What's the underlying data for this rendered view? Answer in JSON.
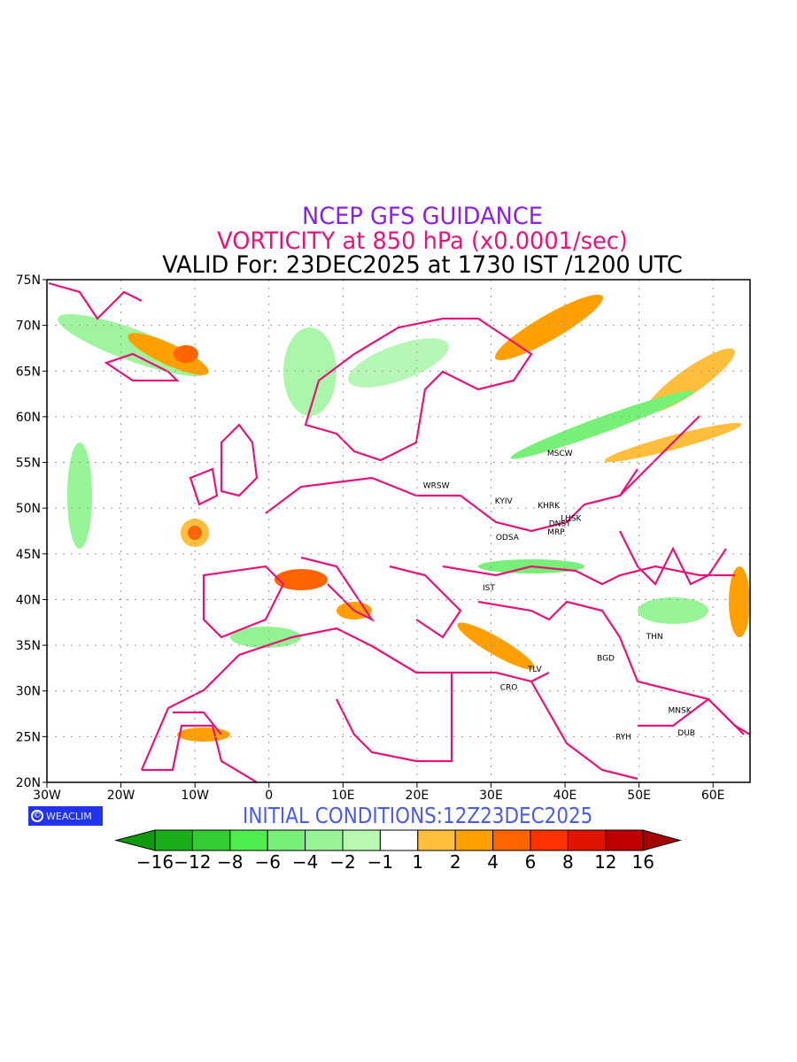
{
  "title": {
    "line1": "NCEP GFS GUIDANCE",
    "line2": "VORTICITY at 850 hPa (x0.0001/sec)",
    "line3": "VALID For: 23DEC2025 at 1730 IST /1200 UTC"
  },
  "colors": {
    "title1": "#8a1fe6",
    "title2": "#e8127a",
    "boundary": "#e8127a",
    "initial": "#4a5cf0"
  },
  "map": {
    "lon_range": [
      -30,
      65
    ],
    "lat_range": [
      20,
      75
    ],
    "x_ticks": [
      "30W",
      "20W",
      "10W",
      "0",
      "10E",
      "20E",
      "30E",
      "40E",
      "50E",
      "60E"
    ],
    "y_ticks": [
      "75N",
      "70N",
      "65N",
      "60N",
      "55N",
      "50N",
      "45N",
      "40N",
      "35N",
      "30N",
      "25N",
      "20N"
    ],
    "cities": [
      {
        "name": "MSCW",
        "lon": 39.3,
        "lat": 56.0
      },
      {
        "name": "WRSW",
        "lon": 22.6,
        "lat": 52.5
      },
      {
        "name": "KYIV",
        "lon": 31.7,
        "lat": 50.8
      },
      {
        "name": "KHRK",
        "lon": 37.8,
        "lat": 50.3
      },
      {
        "name": "LHSK",
        "lon": 40.8,
        "lat": 48.9
      },
      {
        "name": "DNST",
        "lon": 39.3,
        "lat": 48.3
      },
      {
        "name": "MRP",
        "lon": 38.8,
        "lat": 47.4
      },
      {
        "name": "ODSA",
        "lon": 32.2,
        "lat": 46.8
      },
      {
        "name": "IST",
        "lon": 29.7,
        "lat": 41.3
      },
      {
        "name": "TLV",
        "lon": 35.9,
        "lat": 32.4
      },
      {
        "name": "CRO",
        "lon": 32.4,
        "lat": 30.4
      },
      {
        "name": "BGD",
        "lon": 45.5,
        "lat": 33.6
      },
      {
        "name": "THN",
        "lon": 52.1,
        "lat": 36.0
      },
      {
        "name": "MNSK",
        "lon": 55.5,
        "lat": 27.9
      },
      {
        "name": "DUB",
        "lon": 56.4,
        "lat": 25.4
      },
      {
        "name": "RYH",
        "lon": 47.9,
        "lat": 25.0
      }
    ]
  },
  "logo": {
    "symbol": "©",
    "text": "WEACLIM"
  },
  "initial_conditions": "INITIAL CONDITIONS:12Z23DEC2025",
  "colorbar": {
    "labels": [
      "−16",
      "−12",
      "−8",
      "−6",
      "−4",
      "−2",
      "−1",
      "1",
      "2",
      "4",
      "6",
      "8",
      "12",
      "16"
    ],
    "colors": [
      "#1aaf1a",
      "#33cc33",
      "#4ded4d",
      "#77f077",
      "#97f497",
      "#b8f8b0",
      "#ffffff",
      "#ffbe3c",
      "#ffa000",
      "#ff6400",
      "#ff3200",
      "#e11400",
      "#c00000"
    ],
    "low_arrow": "#0f9a0f",
    "high_arrow": "#a50000"
  }
}
